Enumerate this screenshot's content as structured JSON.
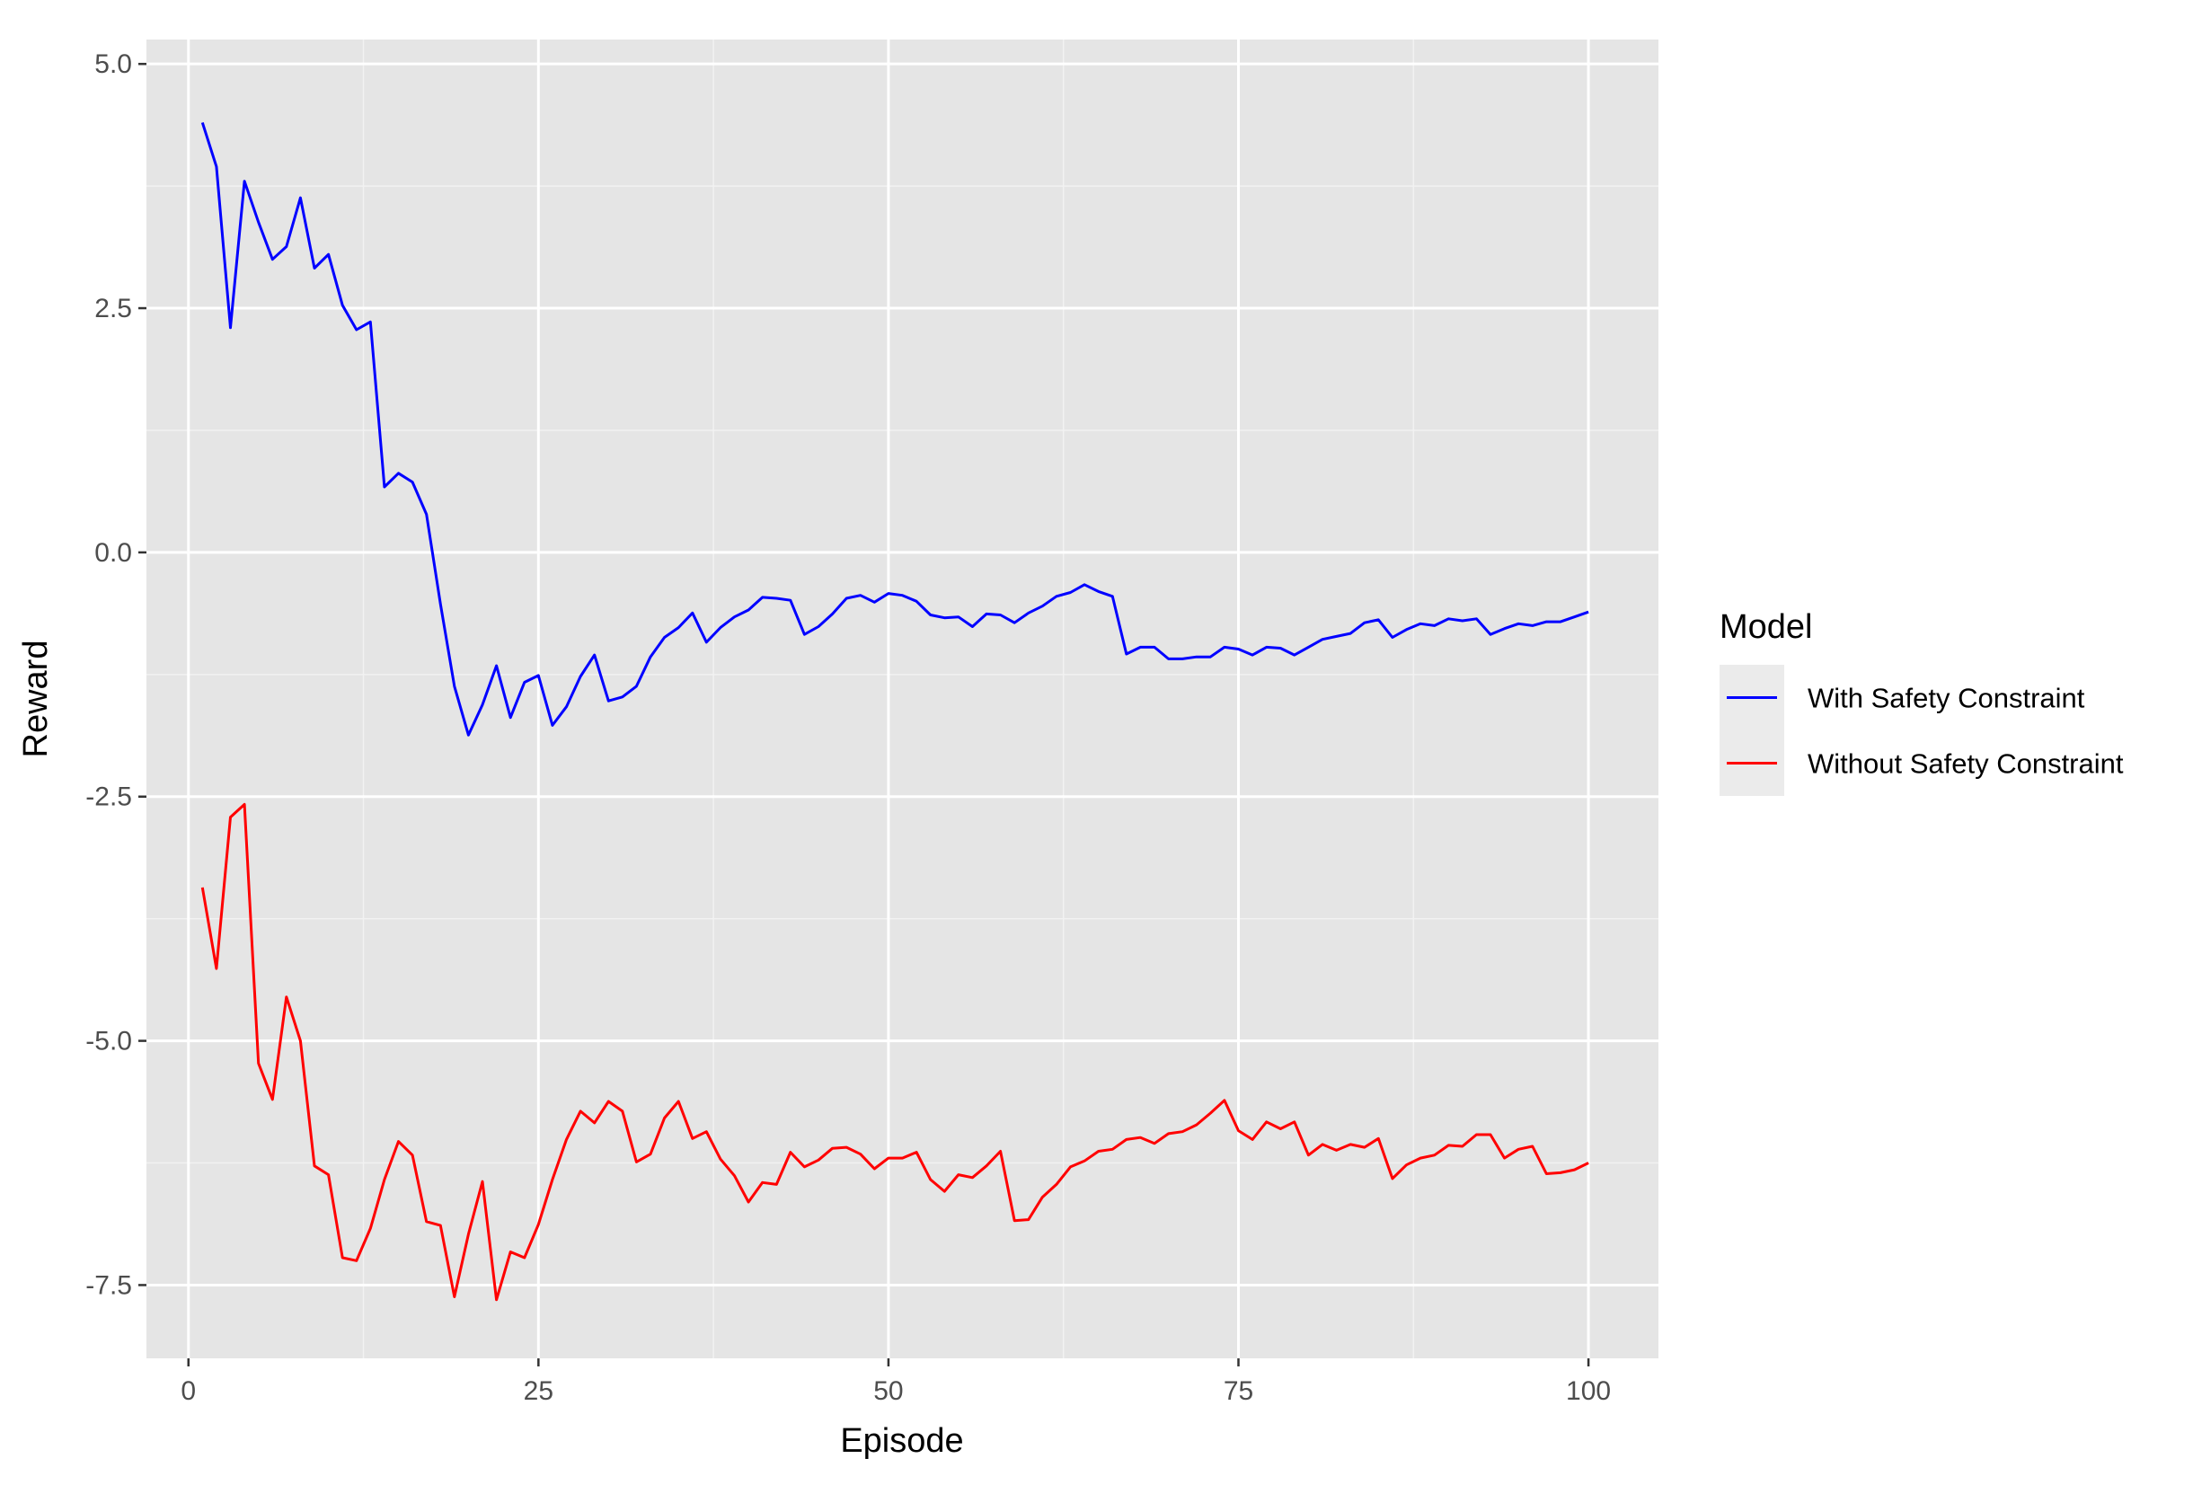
{
  "chart_data": {
    "type": "line",
    "xlabel": "Episode",
    "ylabel": "Reward",
    "xlim": [
      -3,
      105
    ],
    "ylim": [
      -8.25,
      5.25
    ],
    "x_ticks": [
      0,
      25,
      50,
      75,
      100
    ],
    "x_tick_labels": [
      "0",
      "25",
      "50",
      "75",
      "100"
    ],
    "y_ticks": [
      5.0,
      2.5,
      0.0,
      -2.5,
      -5.0,
      -7.5
    ],
    "y_tick_labels": [
      "5.0",
      "2.5",
      "0.0",
      "-2.5",
      "-5.0",
      "-7.5"
    ],
    "grid": true,
    "legend": {
      "title": "Model",
      "position": "right"
    },
    "x": [
      1,
      2,
      3,
      4,
      5,
      6,
      7,
      8,
      9,
      10,
      11,
      12,
      13,
      14,
      15,
      16,
      17,
      18,
      19,
      20,
      21,
      22,
      23,
      24,
      25,
      26,
      27,
      28,
      29,
      30,
      31,
      32,
      33,
      34,
      35,
      36,
      37,
      38,
      39,
      40,
      41,
      42,
      43,
      44,
      45,
      46,
      47,
      48,
      49,
      50,
      51,
      52,
      53,
      54,
      55,
      56,
      57,
      58,
      59,
      60,
      61,
      62,
      63,
      64,
      65,
      66,
      67,
      68,
      69,
      70,
      71,
      72,
      73,
      74,
      75,
      76,
      77,
      78,
      79,
      80,
      81,
      82,
      83,
      84,
      85,
      86,
      87,
      88,
      89,
      90,
      91,
      92,
      93,
      94,
      95,
      96,
      97,
      98,
      99,
      100
    ],
    "series": [
      {
        "name": "With Safety Constraint",
        "color": "#0000ff",
        "values": [
          4.4,
          3.95,
          2.3,
          3.8,
          3.38,
          3.0,
          3.13,
          3.63,
          2.91,
          3.05,
          2.53,
          2.28,
          2.36,
          0.67,
          0.81,
          0.72,
          0.39,
          -0.53,
          -1.37,
          -1.87,
          -1.56,
          -1.16,
          -1.69,
          -1.33,
          -1.26,
          -1.77,
          -1.58,
          -1.27,
          -1.05,
          -1.52,
          -1.48,
          -1.37,
          -1.07,
          -0.87,
          -0.77,
          -0.62,
          -0.92,
          -0.77,
          -0.66,
          -0.59,
          -0.46,
          -0.47,
          -0.49,
          -0.84,
          -0.76,
          -0.63,
          -0.47,
          -0.44,
          -0.51,
          -0.42,
          -0.44,
          -0.5,
          -0.64,
          -0.67,
          -0.66,
          -0.76,
          -0.63,
          -0.64,
          -0.72,
          -0.62,
          -0.55,
          -0.45,
          -0.41,
          -0.33,
          -0.4,
          -0.45,
          -1.04,
          -0.97,
          -0.97,
          -1.09,
          -1.09,
          -1.07,
          -1.07,
          -0.97,
          -0.99,
          -1.05,
          -0.97,
          -0.98,
          -1.05,
          -0.97,
          -0.89,
          -0.86,
          -0.83,
          -0.72,
          -0.69,
          -0.87,
          -0.79,
          -0.73,
          -0.75,
          -0.68,
          -0.7,
          -0.68,
          -0.84,
          -0.78,
          -0.73,
          -0.75,
          -0.71,
          -0.71,
          -0.66,
          -0.61
        ]
      },
      {
        "name": "Without Safety Constraint",
        "color": "#ff0000",
        "values": [
          -3.43,
          -4.26,
          -2.71,
          -2.58,
          -5.23,
          -5.6,
          -4.55,
          -5.0,
          -6.28,
          -6.37,
          -7.22,
          -7.25,
          -6.92,
          -6.42,
          -6.03,
          -6.17,
          -6.85,
          -6.89,
          -7.62,
          -6.98,
          -6.44,
          -7.65,
          -7.16,
          -7.22,
          -6.88,
          -6.42,
          -6.01,
          -5.72,
          -5.84,
          -5.62,
          -5.72,
          -6.24,
          -6.16,
          -5.79,
          -5.62,
          -6.0,
          -5.93,
          -6.21,
          -6.38,
          -6.65,
          -6.45,
          -6.47,
          -6.14,
          -6.29,
          -6.22,
          -6.1,
          -6.09,
          -6.16,
          -6.31,
          -6.2,
          -6.2,
          -6.14,
          -6.42,
          -6.54,
          -6.37,
          -6.4,
          -6.28,
          -6.13,
          -6.84,
          -6.83,
          -6.6,
          -6.47,
          -6.29,
          -6.23,
          -6.13,
          -6.11,
          -6.01,
          -5.99,
          -6.05,
          -5.95,
          -5.93,
          -5.86,
          -5.74,
          -5.61,
          -5.92,
          -6.01,
          -5.83,
          -5.9,
          -5.83,
          -6.17,
          -6.06,
          -6.12,
          -6.06,
          -6.09,
          -6.0,
          -6.41,
          -6.27,
          -6.2,
          -6.17,
          -6.07,
          -6.08,
          -5.96,
          -5.96,
          -6.2,
          -6.11,
          -6.08,
          -6.36,
          -6.35,
          -6.32,
          -6.25
        ]
      }
    ]
  }
}
